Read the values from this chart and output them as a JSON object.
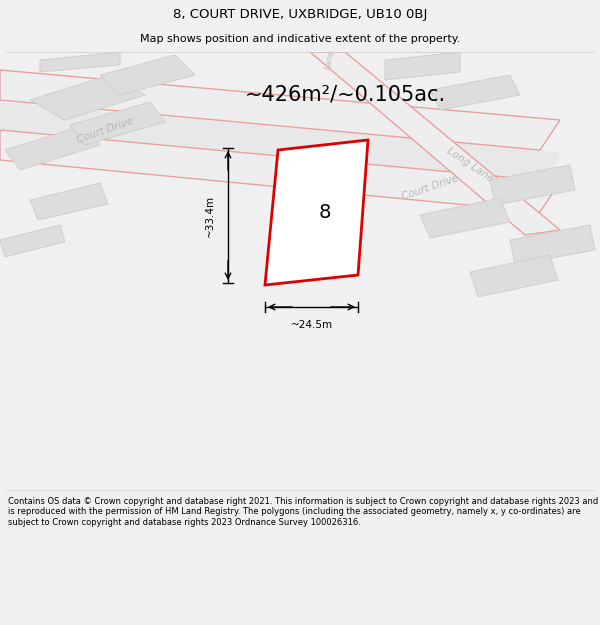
{
  "title_line1": "8, COURT DRIVE, UXBRIDGE, UB10 0BJ",
  "title_line2": "Map shows position and indicative extent of the property.",
  "area_text": "~426m²/~0.105ac.",
  "width_label": "~24.5m",
  "height_label": "~33.4m",
  "plot_number": "8",
  "bg_color": "#f0f0f0",
  "map_bg": "#ffffff",
  "footer_text": "Contains OS data © Crown copyright and database right 2021. This information is subject to Crown copyright and database rights 2023 and is reproduced with the permission of HM Land Registry. The polygons (including the associated geometry, namely x, y co-ordinates) are subject to Crown copyright and database rights 2023 Ordnance Survey 100026316.",
  "road_stroke": "#e8a0a0",
  "road_fill": "#eeeeee",
  "building_fill": "#dddddd",
  "building_edge": "#cccccc",
  "red_plot_color": "#dd0000",
  "road_label_color": "#b0b0b0",
  "title_fontsize": 9.5,
  "subtitle_fontsize": 8.0,
  "area_fontsize": 15,
  "dim_fontsize": 7.5,
  "footer_fontsize": 6.0,
  "plot_number_fontsize": 14
}
